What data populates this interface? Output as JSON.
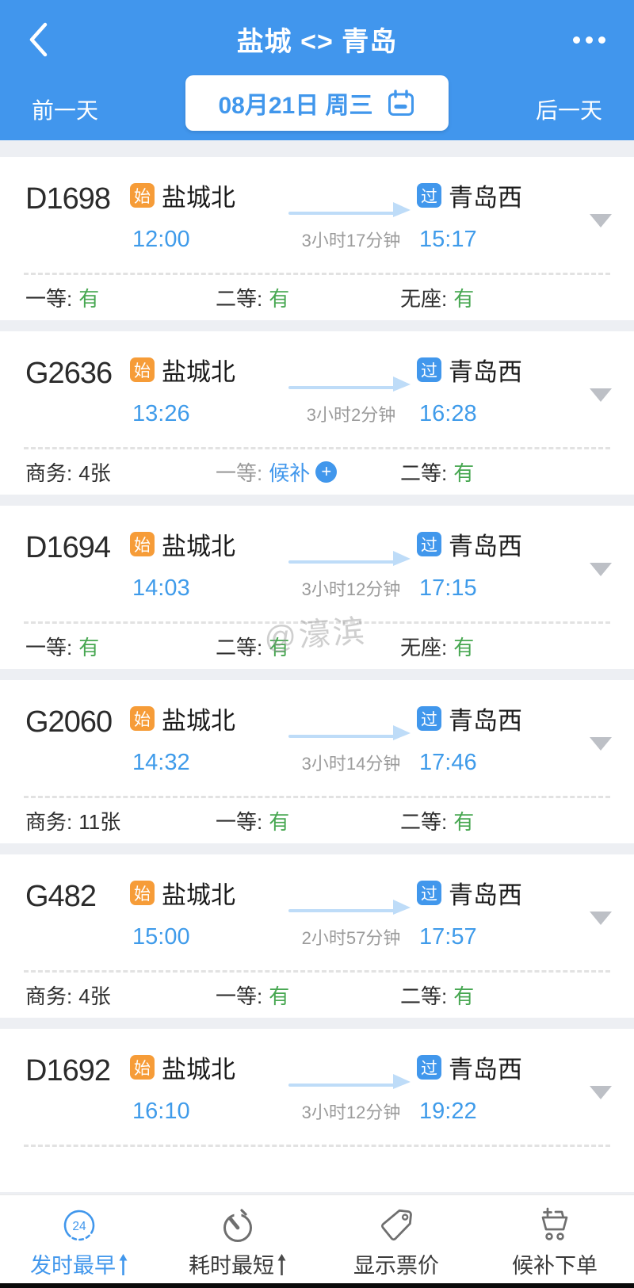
{
  "header": {
    "title": "盐城 <> 青岛",
    "back_icon": "chevron-left",
    "more_icon": "ellipsis",
    "date_bar": {
      "prev_day": "前一天",
      "date": "08月21日 周三",
      "calendar_icon": "calendar",
      "next_day": "后一天"
    }
  },
  "badges": {
    "origin": "始",
    "pass": "过"
  },
  "trains": [
    {
      "number": "D1698",
      "from_station": "盐城北",
      "dep_time": "12:00",
      "duration": "3小时17分钟",
      "to_station": "青岛西",
      "arr_time": "15:17",
      "seats": [
        {
          "label": "一等:",
          "value": "有",
          "status": "available"
        },
        {
          "label": "二等:",
          "value": "有",
          "status": "available"
        },
        {
          "label": "无座:",
          "value": "有",
          "status": "available"
        }
      ]
    },
    {
      "number": "G2636",
      "from_station": "盐城北",
      "dep_time": "13:26",
      "duration": "3小时2分钟",
      "to_station": "青岛西",
      "arr_time": "16:28",
      "seats": [
        {
          "label": "商务:",
          "value": "4张",
          "status": "count"
        },
        {
          "label": "一等:",
          "value": "候补",
          "status": "waitlist",
          "plus_icon": true,
          "dim_label": true
        },
        {
          "label": "二等:",
          "value": "有",
          "status": "available"
        }
      ]
    },
    {
      "number": "D1694",
      "from_station": "盐城北",
      "dep_time": "14:03",
      "duration": "3小时12分钟",
      "to_station": "青岛西",
      "arr_time": "17:15",
      "seats": [
        {
          "label": "一等:",
          "value": "有",
          "status": "available"
        },
        {
          "label": "二等:",
          "value": "有",
          "status": "available"
        },
        {
          "label": "无座:",
          "value": "有",
          "status": "available"
        }
      ]
    },
    {
      "number": "G2060",
      "from_station": "盐城北",
      "dep_time": "14:32",
      "duration": "3小时14分钟",
      "to_station": "青岛西",
      "arr_time": "17:46",
      "seats": [
        {
          "label": "商务:",
          "value": "11张",
          "status": "count"
        },
        {
          "label": "一等:",
          "value": "有",
          "status": "available"
        },
        {
          "label": "二等:",
          "value": "有",
          "status": "available"
        }
      ]
    },
    {
      "number": "G482",
      "from_station": "盐城北",
      "dep_time": "15:00",
      "duration": "2小时57分钟",
      "to_station": "青岛西",
      "arr_time": "17:57",
      "seats": [
        {
          "label": "商务:",
          "value": "4张",
          "status": "count"
        },
        {
          "label": "一等:",
          "value": "有",
          "status": "available"
        },
        {
          "label": "二等:",
          "value": "有",
          "status": "available"
        }
      ]
    },
    {
      "number": "D1692",
      "from_station": "盐城北",
      "dep_time": "16:10",
      "duration": "3小时12分钟",
      "to_station": "青岛西",
      "arr_time": "19:22",
      "seats": []
    }
  ],
  "watermark": "@濠滨",
  "tab_bar": {
    "clock_icon_text": "24",
    "items": [
      {
        "label": "发时最早",
        "icon": "clock-24-icon",
        "active": true,
        "sort_indicator": true
      },
      {
        "label": "耗时最短",
        "icon": "stopwatch-icon",
        "active": false,
        "sort_indicator": true
      },
      {
        "label": "显示票价",
        "icon": "price-tag-icon",
        "active": false,
        "sort_indicator": false
      },
      {
        "label": "候补下单",
        "icon": "cart-plus-icon",
        "active": false,
        "sort_indicator": false
      }
    ]
  },
  "colors": {
    "header_blue": "#4196ED",
    "accent_blue": "#3F9BEA",
    "available_green": "#47A751",
    "origin_orange": "#F69C38",
    "duration_gray": "#9B9B9B"
  }
}
